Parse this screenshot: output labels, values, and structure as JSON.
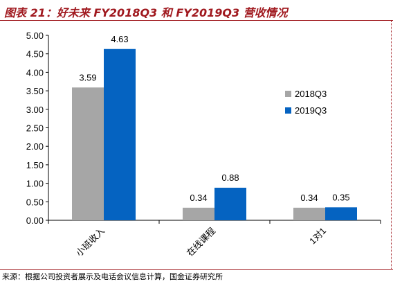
{
  "figure": {
    "title": "图表 21：好未来 FY2018Q3 和 FY2019Q3 营收情况",
    "source": "来源：根据公司投资者展示及电话会议信息计算，国金证券研究所"
  },
  "colors": {
    "title_red": "#a0191f",
    "series_2018": "#a6a6a6",
    "series_2019": "#0563c1",
    "axis": "#000000"
  },
  "chart_data": {
    "type": "bar",
    "title": "",
    "xlabel": "",
    "ylabel": "",
    "categories": [
      "小班收入",
      "在线课程",
      "1对1"
    ],
    "series": [
      {
        "name": "2018Q3",
        "values": [
          3.59,
          0.34,
          0.34
        ],
        "labels": [
          "3.59",
          "0.34",
          "0.34"
        ],
        "color": "#a6a6a6"
      },
      {
        "name": "2019Q3",
        "values": [
          4.63,
          0.88,
          0.35
        ],
        "labels": [
          "4.63",
          "0.88",
          "0.35"
        ],
        "color": "#0563c1"
      }
    ],
    "ylim": [
      0,
      5
    ],
    "yticks": [
      "0.00",
      "0.50",
      "1.00",
      "1.50",
      "2.00",
      "2.50",
      "3.00",
      "3.50",
      "4.00",
      "4.50",
      "5.00"
    ],
    "legend_position": "right",
    "grid": false
  }
}
